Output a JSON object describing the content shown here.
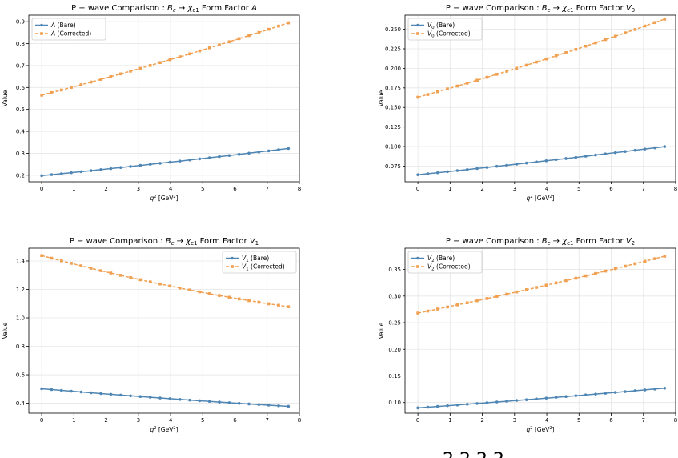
{
  "colors": {
    "bare": "#4f86b4",
    "corrected": "#f0a050",
    "grid": "#e6e6e6",
    "axis": "#000000"
  },
  "xlabel": "q² [GeV²]",
  "ylabel": "Value",
  "bottom_fragment": "2  2  2  2",
  "chart_data": [
    {
      "type": "line",
      "title": "P − wave Comparison : B_c → χ_c1 Form Factor A",
      "title_prefix": "P − wave Comparison : ",
      "title_sym": "A",
      "xlabel": "q² [GeV²]",
      "ylabel": "Value",
      "xlim": [
        -0.4,
        8.0
      ],
      "ylim": [
        0.17,
        0.93
      ],
      "xticks": [
        0,
        1,
        2,
        3,
        4,
        5,
        6,
        7,
        8
      ],
      "yticks": [
        0.2,
        0.3,
        0.4,
        0.5,
        0.6,
        0.7,
        0.8,
        0.9
      ],
      "ytick_labels": [
        "0.2",
        "0.3",
        "0.4",
        "0.5",
        "0.6",
        "0.7",
        "0.8",
        "0.9"
      ],
      "grid": true,
      "legend": "top-left",
      "series": [
        {
          "name": "A (Bare)",
          "sym": "A",
          "sub": "",
          "suffix": " (Bare)",
          "style": "bare",
          "y_start": 0.198,
          "y_end": 0.322,
          "curve": 0.1
        },
        {
          "name": "A (Corrected)",
          "sym": "A",
          "sub": "",
          "suffix": " (Corrected)",
          "style": "corrected",
          "y_start": 0.565,
          "y_end": 0.895,
          "curve": 0.12
        }
      ]
    },
    {
      "type": "line",
      "title": "P − wave Comparison : B_c → χ_c1 Form Factor V_0",
      "title_prefix": "P − wave Comparison : ",
      "title_sym": "V",
      "title_sub": "0",
      "xlabel": "q² [GeV²]",
      "ylabel": "Value",
      "xlim": [
        -0.4,
        8.0
      ],
      "ylim": [
        0.055,
        0.268
      ],
      "xticks": [
        0,
        1,
        2,
        3,
        4,
        5,
        6,
        7,
        8
      ],
      "yticks": [
        0.075,
        0.1,
        0.125,
        0.15,
        0.175,
        0.2,
        0.225,
        0.25
      ],
      "ytick_labels": [
        "0.075",
        "0.100",
        "0.125",
        "0.150",
        "0.175",
        "0.200",
        "0.225",
        "0.250"
      ],
      "grid": true,
      "legend": "top-left",
      "series": [
        {
          "name": "V0 (Bare)",
          "sym": "V",
          "sub": "0",
          "suffix": " (Bare)",
          "style": "bare",
          "y_start": 0.064,
          "y_end": 0.1,
          "curve": 0.1
        },
        {
          "name": "V0 (Corrected)",
          "sym": "V",
          "sub": "0",
          "suffix": " (Corrected)",
          "style": "corrected",
          "y_start": 0.163,
          "y_end": 0.263,
          "curve": 0.12
        }
      ]
    },
    {
      "type": "line",
      "title": "P − wave Comparison : B_c → χ_c1 Form Factor V_1",
      "title_prefix": "P − wave Comparison : ",
      "title_sym": "V",
      "title_sub": "1",
      "xlabel": "q² [GeV²]",
      "ylabel": "Value",
      "xlim": [
        -0.4,
        8.0
      ],
      "ylim": [
        0.33,
        1.49
      ],
      "xticks": [
        0,
        1,
        2,
        3,
        4,
        5,
        6,
        7,
        8
      ],
      "yticks": [
        0.4,
        0.6,
        0.8,
        1.0,
        1.2,
        1.4
      ],
      "ytick_labels": [
        "0.4",
        "0.6",
        "0.8",
        "1.0",
        "1.2",
        "1.4"
      ],
      "grid": true,
      "legend": "top-right",
      "series": [
        {
          "name": "V1 (Bare)",
          "sym": "V",
          "sub": "1",
          "suffix": " (Bare)",
          "style": "bare",
          "y_start": 0.502,
          "y_end": 0.378,
          "curve": -0.18
        },
        {
          "name": "V1 (Corrected)",
          "sym": "V",
          "sub": "1",
          "suffix": " (Corrected)",
          "style": "corrected",
          "y_start": 1.438,
          "y_end": 1.078,
          "curve": -0.3
        }
      ]
    },
    {
      "type": "line",
      "title": "P − wave Comparison : B_c → χ_c1 Form Factor V_2",
      "title_prefix": "P − wave Comparison : ",
      "title_sym": "V",
      "title_sub": "2",
      "xlabel": "q² [GeV²]",
      "ylabel": "Value",
      "xlim": [
        -0.4,
        8.0
      ],
      "ylim": [
        0.08,
        0.39
      ],
      "xticks": [
        0,
        1,
        2,
        3,
        4,
        5,
        6,
        7,
        8
      ],
      "yticks": [
        0.1,
        0.15,
        0.2,
        0.25,
        0.3,
        0.35
      ],
      "ytick_labels": [
        "0.10",
        "0.15",
        "0.20",
        "0.25",
        "0.30",
        "0.35"
      ],
      "grid": true,
      "legend": "top-left",
      "series": [
        {
          "name": "V2 (Bare)",
          "sym": "V",
          "sub": "2",
          "suffix": " (Bare)",
          "style": "bare",
          "y_start": 0.09,
          "y_end": 0.127,
          "curve": 0.1
        },
        {
          "name": "V2 (Corrected)",
          "sym": "V",
          "sub": "2",
          "suffix": " (Corrected)",
          "style": "corrected",
          "y_start": 0.268,
          "y_end": 0.375,
          "curve": 0.12
        }
      ]
    }
  ]
}
